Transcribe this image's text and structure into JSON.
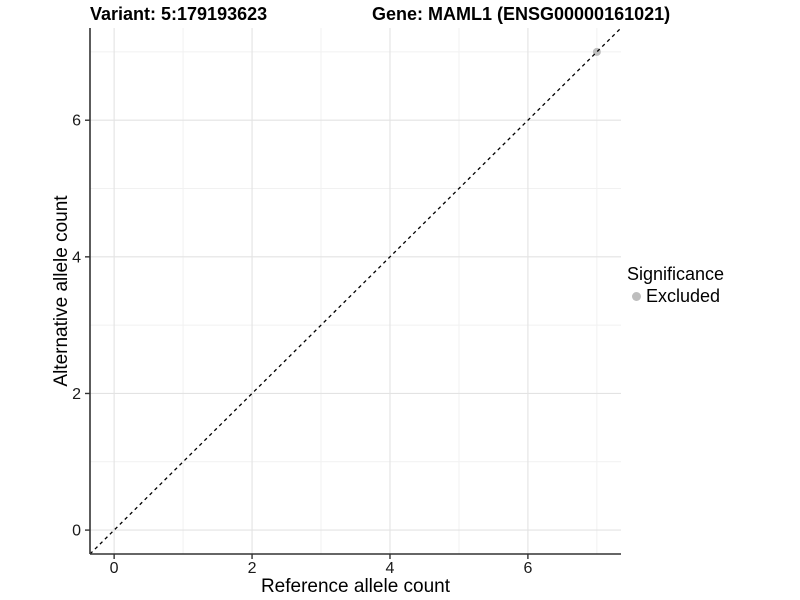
{
  "titles": {
    "variant": "Variant: 5:179193623",
    "gene": "Gene: MAML1 (ENSG00000161021)"
  },
  "chart_data": {
    "type": "scatter",
    "title": "Variant: 5:179193623  /  Gene: MAML1 (ENSG00000161021)",
    "xlabel": "Reference allele count",
    "ylabel": "Alternative allele count",
    "xlim": [
      -0.35,
      7.35
    ],
    "ylim": [
      -0.35,
      7.35
    ],
    "xticks": [
      0,
      2,
      4,
      6
    ],
    "yticks": [
      0,
      2,
      4,
      6
    ],
    "xticks_minor": [
      1,
      3,
      5,
      7
    ],
    "yticks_minor": [
      1,
      3,
      5,
      7
    ],
    "grid": "major and minor, light gray on white panel",
    "reference_line": {
      "kind": "identity y=x",
      "slope": 1,
      "intercept": 0,
      "style": "dashed",
      "color": "#000000"
    },
    "series": [
      {
        "name": "Excluded",
        "color": "#bebebe",
        "points": [
          {
            "x": 7,
            "y": 7
          }
        ]
      }
    ],
    "legend": {
      "position": "right",
      "title": "Significance",
      "items": [
        {
          "label": "Excluded",
          "color": "#bebebe"
        }
      ]
    }
  },
  "colors": {
    "point": "#bebebe",
    "grid_major": "#e3e3e3",
    "grid_minor": "#f1f1f1",
    "axis_line": "#333333",
    "dashed_line": "#000000",
    "tick_text": "#1a1a1a"
  }
}
